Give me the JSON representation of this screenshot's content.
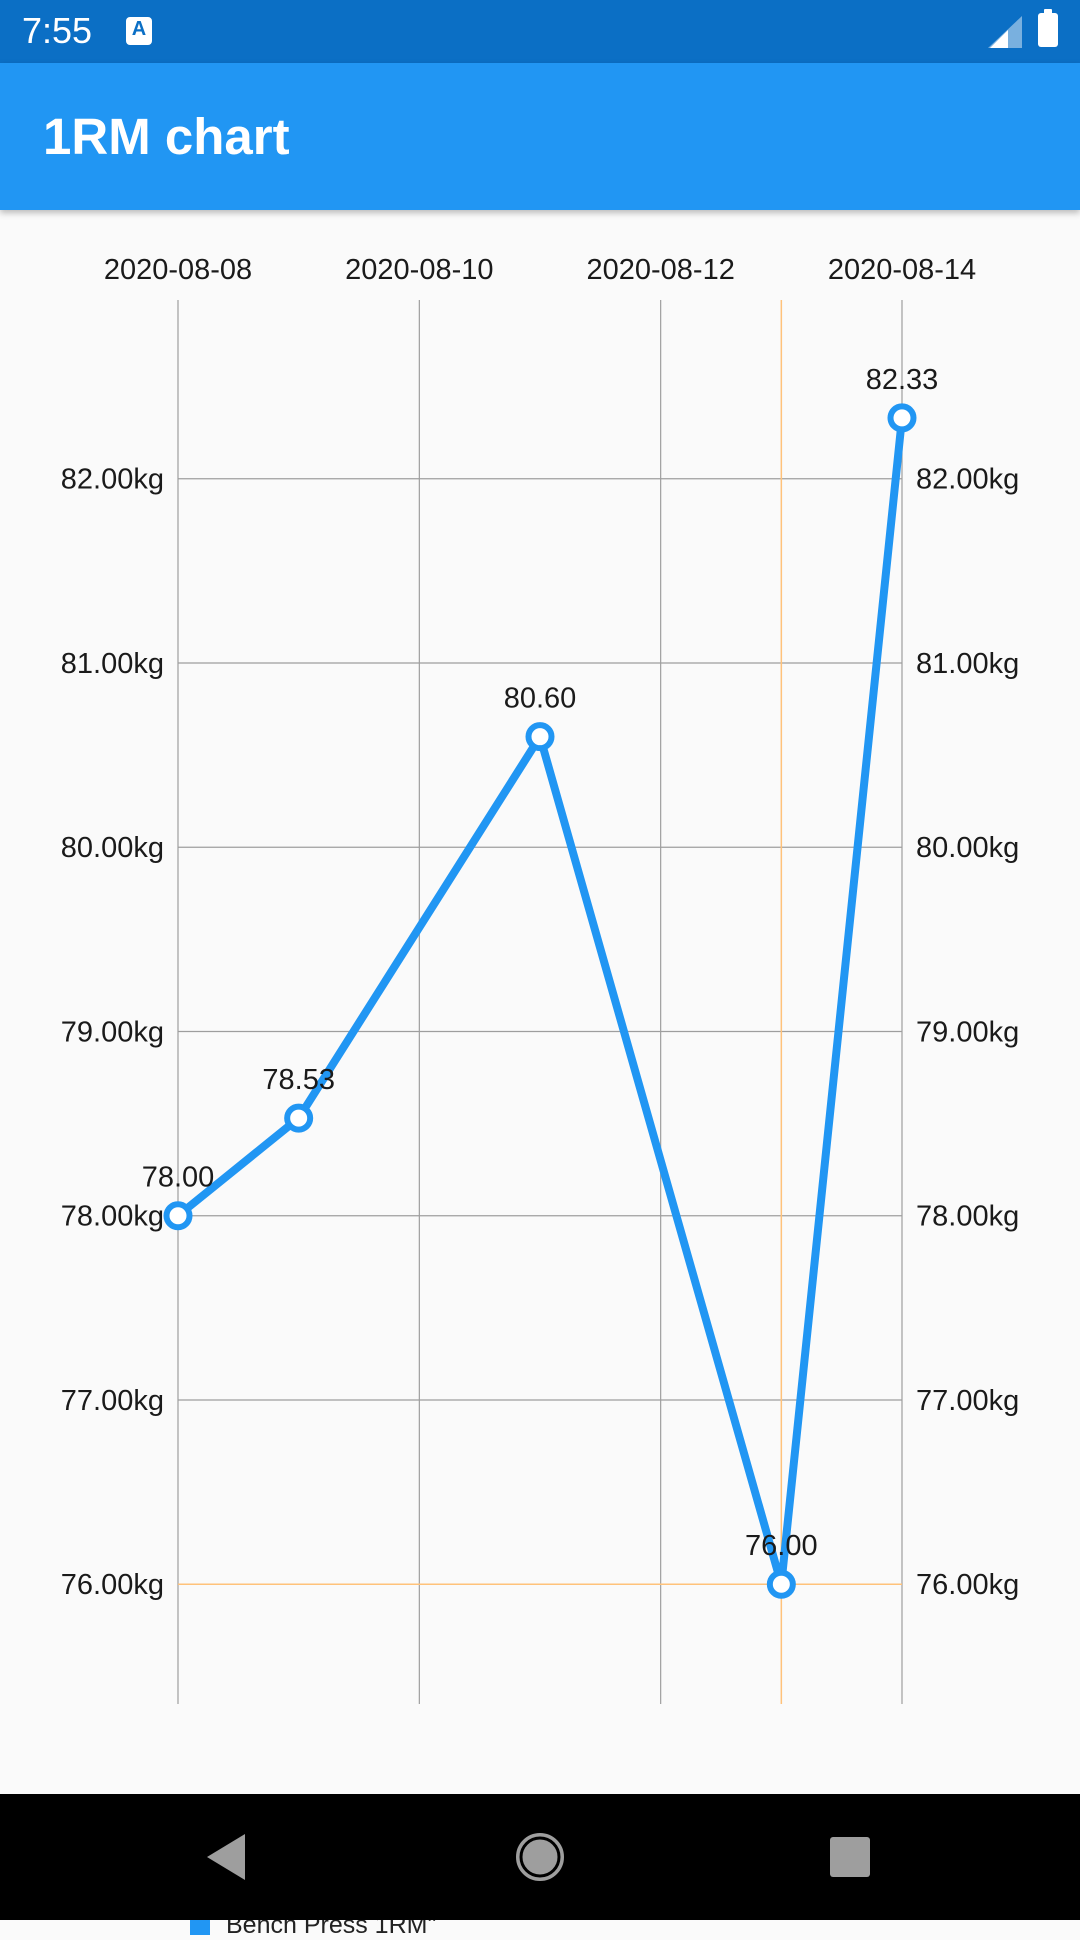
{
  "status_bar": {
    "time": "7:55",
    "notification_icon": "text-a-icon",
    "signal_icon": "cell-signal-icon",
    "battery_icon": "battery-icon"
  },
  "app_bar": {
    "title": "1RM chart",
    "color": "#2196f3"
  },
  "chart_data": {
    "type": "line",
    "x_tick_labels": [
      "2020-08-08",
      "2020-08-10",
      "2020-08-12",
      "2020-08-14"
    ],
    "y_tick_labels": [
      "82.00kg",
      "81.00kg",
      "80.00kg",
      "79.00kg",
      "78.00kg",
      "77.00kg",
      "76.00kg"
    ],
    "y_ticks": [
      82,
      81,
      80,
      79,
      78,
      77,
      76
    ],
    "x_ticks": [
      "2020-08-08",
      "2020-08-10",
      "2020-08-12",
      "2020-08-14"
    ],
    "x_range": [
      "2020-08-08",
      "2020-08-14"
    ],
    "ylim": [
      75.35,
      82.97
    ],
    "y_axes": "left and right",
    "grid": true,
    "highlight": {
      "x": "2020-08-13",
      "y": 76.0,
      "color": "#ffc27a"
    },
    "series": [
      {
        "name": "Bench Press 1RM\"",
        "color": "#2196f3",
        "points": [
          {
            "x": "2020-08-08",
            "y": 78.0,
            "label": "78.00"
          },
          {
            "x": "2020-08-09",
            "y": 78.53,
            "label": "78.53"
          },
          {
            "x": "2020-08-11",
            "y": 80.6,
            "label": "80.60"
          },
          {
            "x": "2020-08-13",
            "y": 76.0,
            "label": "76.00"
          },
          {
            "x": "2020-08-14",
            "y": 82.33,
            "label": "82.33"
          }
        ]
      }
    ],
    "legend_position": "bottom-left"
  },
  "nav_bar": {
    "back_icon": "back-triangle-icon",
    "home_icon": "home-circle-icon",
    "recents_icon": "recents-square-icon"
  }
}
